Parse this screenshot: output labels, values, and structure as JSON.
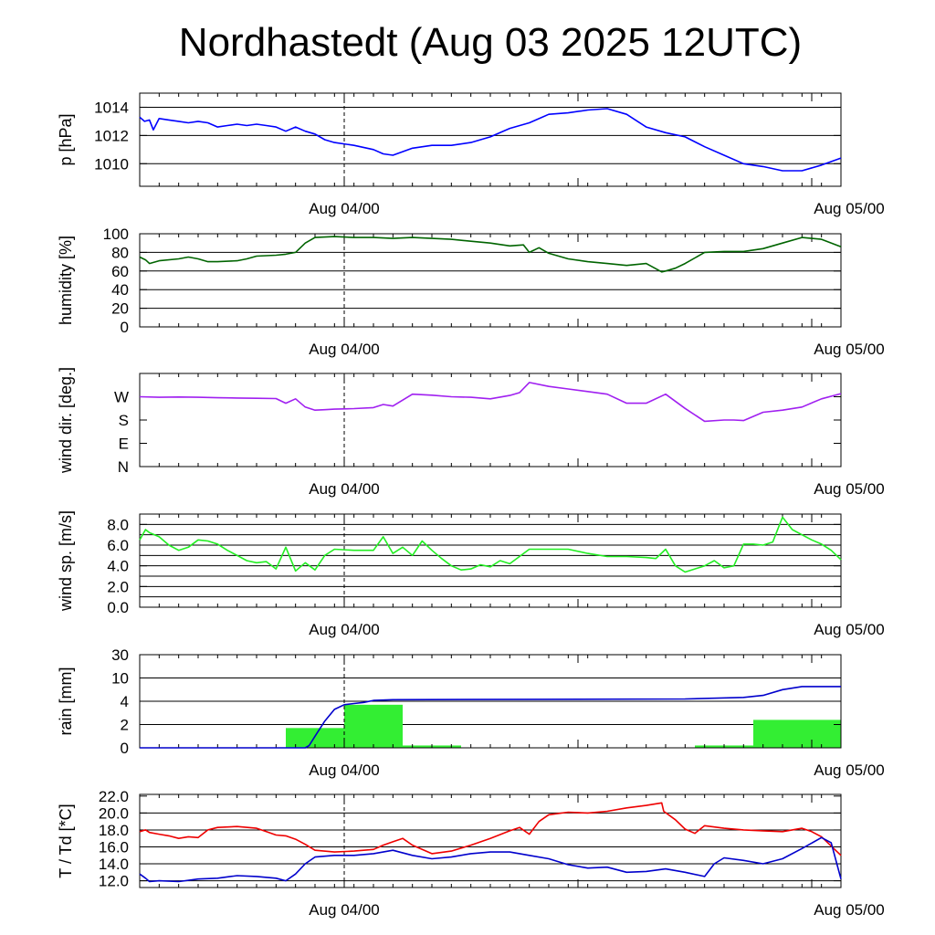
{
  "title": "Nordhastedt (Aug 03 2025 12UTC)",
  "colors": {
    "pressure": "#0000ff",
    "humidity": "#006400",
    "wind_dir": "#a020f0",
    "wind_speed": "#22ee22",
    "rain_bar": "#33ee33",
    "rain_cum": "#0000cc",
    "temperature": "#ee0000",
    "dewpoint": "#0000cc",
    "grid": "#000000"
  },
  "chart_data": [
    {
      "id": "pressure",
      "type": "line",
      "ylabel": "p [hPa]",
      "x_ticks": [
        "Aug 04/00",
        "Aug 05/00"
      ],
      "x_range_hours": [
        0,
        36
      ],
      "ylim": [
        1008.4,
        1015
      ],
      "y_ticks": [
        {
          "v": 1010,
          "label": "1010"
        },
        {
          "v": 1012,
          "label": "1012"
        },
        {
          "v": 1014,
          "label": "1014"
        }
      ],
      "grid": [
        1010,
        1012,
        1014
      ],
      "series": [
        {
          "key": "pressure",
          "x": [
            0,
            0.25,
            0.5,
            0.7,
            1,
            1.5,
            2,
            2.5,
            3,
            3.5,
            4,
            4.5,
            5,
            5.5,
            6,
            6.5,
            7,
            7.5,
            8,
            8.5,
            9,
            9.5,
            10,
            11,
            12,
            12.5,
            13,
            14,
            15,
            16,
            17,
            18,
            19,
            20,
            21,
            22,
            23,
            24,
            25,
            26,
            27,
            28,
            29,
            30,
            31,
            32,
            33,
            34,
            35,
            36
          ],
          "y": [
            1013.3,
            1013.0,
            1013.1,
            1012.4,
            1013.2,
            1013.1,
            1013.0,
            1012.9,
            1013.0,
            1012.9,
            1012.6,
            1012.7,
            1012.8,
            1012.7,
            1012.8,
            1012.7,
            1012.6,
            1012.3,
            1012.6,
            1012.3,
            1012.1,
            1011.7,
            1011.5,
            1011.3,
            1011.0,
            1010.7,
            1010.6,
            1011.1,
            1011.3,
            1011.3,
            1011.5,
            1011.9,
            1012.5,
            1012.9,
            1013.5,
            1013.6,
            1013.8,
            1013.9,
            1013.5,
            1012.6,
            1012.2,
            1011.9,
            1011.2,
            1010.6,
            1010.0,
            1009.8,
            1009.5,
            1009.5,
            1009.9,
            1010.4
          ]
        }
      ]
    },
    {
      "id": "humidity",
      "type": "line",
      "ylabel": "humidity [%]",
      "x_ticks": [
        "Aug 04/00",
        "Aug 05/00"
      ],
      "x_range_hours": [
        0,
        36
      ],
      "ylim": [
        0,
        100
      ],
      "y_ticks": [
        {
          "v": 0,
          "label": "0"
        },
        {
          "v": 20,
          "label": "20"
        },
        {
          "v": 40,
          "label": "40"
        },
        {
          "v": 60,
          "label": "60"
        },
        {
          "v": 80,
          "label": "80"
        },
        {
          "v": 100,
          "label": "100"
        }
      ],
      "grid": [
        20,
        40,
        60,
        80
      ],
      "series": [
        {
          "key": "humidity",
          "x": [
            0,
            0.3,
            0.5,
            1,
            2,
            2.5,
            3,
            3.5,
            4,
            5,
            5.5,
            6,
            7,
            7.5,
            8,
            8.5,
            9,
            10,
            11,
            12,
            13,
            14,
            15,
            16,
            17,
            18,
            19,
            19.7,
            20,
            20.5,
            21,
            22,
            23,
            24,
            25,
            26,
            26.8,
            27,
            27.5,
            28,
            29,
            30,
            31,
            32,
            33,
            34,
            35,
            36
          ],
          "y": [
            75,
            72,
            68,
            71,
            73,
            75,
            73,
            70,
            70,
            71,
            73,
            76,
            77,
            78,
            80,
            90,
            96,
            97,
            96,
            96,
            95,
            96,
            95,
            94,
            92,
            90,
            87,
            88,
            80,
            85,
            79,
            73,
            70,
            68,
            66,
            68,
            59,
            60,
            63,
            68,
            80,
            81,
            81,
            84,
            90,
            96,
            94,
            86
          ]
        }
      ]
    },
    {
      "id": "wind_dir",
      "type": "line",
      "ylabel": "wind dir. [deg.]",
      "x_ticks": [
        "Aug 04/00",
        "Aug 05/00"
      ],
      "x_range_hours": [
        0,
        36
      ],
      "ylim": [
        0,
        360
      ],
      "y_ticks": [
        {
          "v": 0,
          "label": "N"
        },
        {
          "v": 90,
          "label": "E"
        },
        {
          "v": 180,
          "label": "S"
        },
        {
          "v": 270,
          "label": "W"
        }
      ],
      "grid": [],
      "series": [
        {
          "key": "wind_dir",
          "x": [
            0,
            1,
            2,
            3,
            4,
            5,
            6,
            7,
            7.5,
            8,
            8.5,
            9,
            9.5,
            10,
            11,
            12,
            12.5,
            13,
            14,
            15,
            16,
            17,
            18,
            19,
            19.5,
            20,
            21,
            22,
            23,
            24,
            25,
            26,
            27,
            28,
            29,
            30,
            30.5,
            31,
            32,
            33,
            34,
            35,
            36
          ],
          "y": [
            270,
            268,
            269,
            268,
            266,
            265,
            264,
            263,
            245,
            262,
            230,
            218,
            220,
            222,
            224,
            228,
            240,
            234,
            280,
            276,
            270,
            268,
            262,
            275,
            286,
            325,
            310,
            300,
            290,
            280,
            245,
            245,
            280,
            225,
            175,
            180,
            180,
            178,
            210,
            218,
            230,
            262,
            282
          ]
        }
      ]
    },
    {
      "id": "wind_speed",
      "type": "line",
      "ylabel": "wind sp. [m/s]",
      "x_ticks": [
        "Aug 04/00",
        "Aug 05/00"
      ],
      "x_range_hours": [
        0,
        36
      ],
      "ylim": [
        0,
        9
      ],
      "y_ticks": [
        {
          "v": 0,
          "label": "0.0"
        },
        {
          "v": 2,
          "label": "2.0"
        },
        {
          "v": 4,
          "label": "4.0"
        },
        {
          "v": 6,
          "label": "6.0"
        },
        {
          "v": 8,
          "label": "8.0"
        }
      ],
      "grid": [
        1,
        2,
        3,
        4,
        5,
        6,
        7,
        8
      ],
      "series": [
        {
          "key": "wind_speed",
          "x": [
            0,
            0.3,
            0.5,
            1,
            1.5,
            2,
            2.5,
            3,
            3.5,
            4,
            4.5,
            5,
            5.5,
            6,
            6.5,
            7,
            7.5,
            8,
            8.5,
            9,
            9.5,
            10,
            11,
            12,
            12.5,
            13,
            13.5,
            14,
            14.5,
            15,
            15.5,
            16,
            16.5,
            17,
            17.5,
            18,
            18.5,
            19,
            20,
            21,
            22,
            23,
            24,
            25,
            26,
            26.5,
            27,
            27.5,
            28,
            28.5,
            29,
            29.5,
            30,
            30.5,
            31,
            31.5,
            32,
            32.5,
            33,
            33.5,
            34,
            34.5,
            35,
            35.5,
            36
          ],
          "y": [
            6.5,
            7.5,
            7.2,
            6.8,
            6.0,
            5.5,
            5.8,
            6.5,
            6.4,
            6.1,
            5.5,
            5.0,
            4.5,
            4.3,
            4.4,
            3.7,
            5.8,
            3.5,
            4.3,
            3.6,
            5.0,
            5.6,
            5.5,
            5.5,
            6.8,
            5.2,
            5.8,
            5.0,
            6.4,
            5.5,
            4.7,
            4.0,
            3.6,
            3.7,
            4.1,
            3.9,
            4.5,
            4.2,
            5.6,
            5.6,
            5.6,
            5.2,
            4.9,
            4.9,
            4.8,
            4.7,
            5.6,
            4.0,
            3.4,
            3.7,
            4.0,
            4.5,
            3.8,
            4.0,
            6.1,
            6.1,
            6.0,
            6.3,
            8.7,
            7.5,
            7.0,
            6.5,
            6.1,
            5.5,
            4.6
          ]
        }
      ]
    },
    {
      "id": "rain",
      "type": "bar",
      "ylabel": "rain [mm]",
      "x_ticks": [
        "Aug 04/00",
        "Aug 05/00"
      ],
      "x_range_hours": [
        0,
        36
      ],
      "y_ticks": [
        {
          "v": 0,
          "label": "0"
        },
        {
          "v": 2,
          "label": "2"
        },
        {
          "v": 4,
          "label": "4"
        },
        {
          "v": 10,
          "label": "10"
        },
        {
          "v": 30,
          "label": "30"
        }
      ],
      "grid": [
        2,
        4,
        10,
        30
      ],
      "y_scale": "nonlinear",
      "bars": [
        {
          "x0": 7.5,
          "x1": 10.5,
          "value": 1.7
        },
        {
          "x0": 10.5,
          "x1": 13.5,
          "value": 3.7
        },
        {
          "x0": 13.5,
          "x1": 16.5,
          "value": 0.2
        },
        {
          "x0": 28.5,
          "x1": 31.5,
          "value": 0.2
        },
        {
          "x0": 31.5,
          "x1": 36,
          "value": 2.4
        }
      ],
      "series": [
        {
          "key": "rain_cum",
          "name": "",
          "x": [
            0,
            8.5,
            8.7,
            9,
            9.5,
            10,
            10.5,
            11,
            11.5,
            12,
            12.5,
            13,
            20,
            28,
            31,
            32,
            33,
            34,
            36
          ],
          "y": [
            0,
            0,
            0.2,
            1.0,
            2.3,
            3.3,
            3.7,
            3.8,
            3.9,
            4.2,
            4.3,
            4.4,
            4.5,
            4.6,
            5.0,
            5.5,
            7.0,
            7.8,
            7.8
          ]
        }
      ]
    },
    {
      "id": "temp",
      "type": "line",
      "ylabel": "T / Td [*C]",
      "x_ticks": [
        "Aug 04/00",
        "Aug 05/00"
      ],
      "x_range_hours": [
        0,
        36
      ],
      "ylim": [
        11.2,
        22.2
      ],
      "y_ticks": [
        {
          "v": 12,
          "label": "12.0"
        },
        {
          "v": 14,
          "label": "14.0"
        },
        {
          "v": 16,
          "label": "16.0"
        },
        {
          "v": 18,
          "label": "18.0"
        },
        {
          "v": 20,
          "label": "20.0"
        },
        {
          "v": 22,
          "label": "22.0"
        }
      ],
      "grid": [
        12,
        14,
        16,
        18,
        20
      ],
      "series": [
        {
          "key": "temperature",
          "x": [
            0,
            0.3,
            0.5,
            1,
            1.5,
            2,
            2.5,
            3,
            3.5,
            4,
            5,
            6,
            6.5,
            7,
            7.5,
            8,
            8.5,
            9,
            10,
            11,
            12,
            12.5,
            13,
            13.5,
            14,
            15,
            16,
            17,
            18,
            19,
            19.5,
            20,
            20.5,
            21,
            22,
            23,
            24,
            25,
            26,
            26.8,
            26.9,
            27.5,
            28,
            28.5,
            29,
            30,
            31,
            32,
            33,
            34,
            34.5,
            35,
            36
          ],
          "y": [
            17.8,
            18.0,
            17.7,
            17.5,
            17.3,
            17.0,
            17.2,
            17.1,
            18.0,
            18.3,
            18.4,
            18.2,
            17.8,
            17.4,
            17.3,
            16.9,
            16.3,
            15.6,
            15.4,
            15.5,
            15.7,
            16.2,
            16.6,
            17.0,
            16.2,
            15.2,
            15.5,
            16.2,
            17.0,
            17.9,
            18.3,
            17.5,
            19.0,
            19.8,
            20.1,
            20.0,
            20.2,
            20.6,
            20.9,
            21.2,
            20.2,
            19.2,
            18.1,
            17.6,
            18.5,
            18.2,
            18.0,
            17.9,
            17.8,
            18.2,
            17.8,
            17.2,
            15.0
          ]
        },
        {
          "key": "dewpoint",
          "x": [
            0,
            0.3,
            0.5,
            1,
            2,
            3,
            4,
            5,
            6,
            7,
            7.5,
            8,
            8.5,
            9,
            10,
            11,
            12,
            13,
            14,
            15,
            16,
            17,
            18,
            19,
            20,
            21,
            22,
            23,
            24,
            25,
            26,
            27,
            28,
            29,
            29.5,
            30,
            31,
            32,
            33,
            34,
            35,
            35.5,
            36
          ],
          "y": [
            12.8,
            12.3,
            11.9,
            12.0,
            11.9,
            12.2,
            12.3,
            12.6,
            12.5,
            12.3,
            12.0,
            12.8,
            14.0,
            14.8,
            15.0,
            15.0,
            15.2,
            15.6,
            15.0,
            14.6,
            14.8,
            15.2,
            15.4,
            15.4,
            15.0,
            14.6,
            13.9,
            13.5,
            13.6,
            13.0,
            13.1,
            13.4,
            13.0,
            12.5,
            14.0,
            14.7,
            14.4,
            14.0,
            14.6,
            15.8,
            17.1,
            16.5,
            12.2
          ]
        }
      ]
    }
  ]
}
